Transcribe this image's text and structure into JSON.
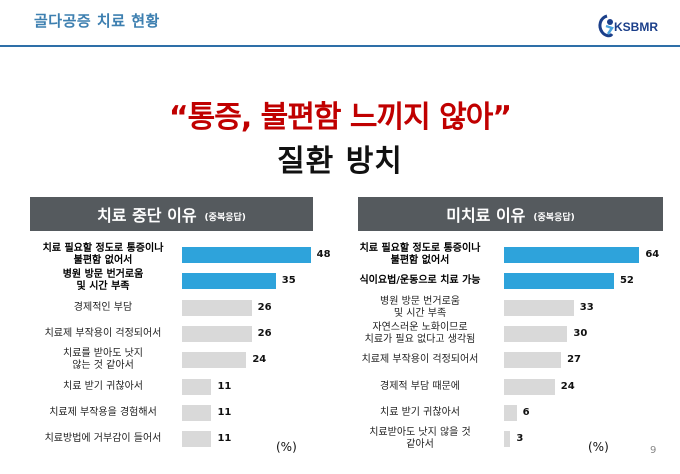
{
  "header": {
    "title": "골다공증 치료 현황",
    "logo_text": "KSBMR"
  },
  "headline": {
    "line1": "“통증, 불편함 느끼지 않아”",
    "line2": "질환 방치"
  },
  "colors": {
    "highlight_bar": "#2ea3db",
    "normal_bar": "#d9d9d9",
    "header_bg": "#555a5e",
    "headline_red": "#c00000"
  },
  "left_panel": {
    "title": "치료 중단 이유",
    "note": "(중복응답)",
    "unit": "(%)",
    "chart_data": {
      "type": "bar",
      "orientation": "horizontal",
      "categories": [
        "치료 필요할 정도로 통증이나 불편함 없어서",
        "병원 방문 번거로움 및 시간 부족",
        "경제적인 부담",
        "치료제 부작용이 걱정되어서",
        "치료를 받아도 낫지 않는 것 같아서",
        "치료 받기 귀찮아서",
        "치료제 부작용을 경험해서",
        "치료방법에 거부감이 들어서"
      ],
      "values": [
        48,
        35,
        26,
        26,
        24,
        11,
        11,
        11
      ],
      "highlighted": [
        true,
        true,
        false,
        false,
        false,
        false,
        false,
        false
      ],
      "xlim": [
        0,
        50
      ]
    }
  },
  "right_panel": {
    "title": "미치료 이유",
    "note": "(중복응답)",
    "unit": "(%)",
    "chart_data": {
      "type": "bar",
      "orientation": "horizontal",
      "categories": [
        "치료 필요할 정도로 통증이나 불편함 없어서",
        "식이요법/운동으로 치료 가능",
        "병원 방문 번거로움 및 시간 부족",
        "자연스러운 노화이므로 치료가 필요 없다고 생각됨",
        "치료제 부작용이 걱정되어서",
        "경제적 부담 때문에",
        "치료 받기 귀찮아서",
        "치료받아도 낫지 않을 것 같아서"
      ],
      "values": [
        64,
        52,
        33,
        30,
        27,
        24,
        6,
        3
      ],
      "highlighted": [
        true,
        true,
        false,
        false,
        false,
        false,
        false,
        false
      ],
      "xlim": [
        0,
        70
      ]
    }
  },
  "left_labels": [
    [
      "치료 필요할 정도로 통증이나",
      "불편함 없어서"
    ],
    [
      "병원 방문 번거로움",
      "및 시간 부족"
    ],
    [
      "경제적인 부담"
    ],
    [
      "치료제 부작용이 걱정되어서"
    ],
    [
      "치료를 받아도 낫지",
      "않는 것 같아서"
    ],
    [
      "치료 받기 귀찮아서"
    ],
    [
      "치료제 부작용을 경험해서"
    ],
    [
      "치료방법에 거부감이 들어서"
    ]
  ],
  "right_labels": [
    [
      "치료 필요할 정도로 통증이나",
      "불편함 없어서"
    ],
    [
      "식이요법/운동으로 치료 가능"
    ],
    [
      "병원 방문 번거로움",
      "및 시간 부족"
    ],
    [
      "자연스러운 노화이므로",
      "치료가 필요 없다고 생각됨"
    ],
    [
      "치료제 부작용이 걱정되어서"
    ],
    [
      "경제적 부담 때문에"
    ],
    [
      "치료 받기 귀찮아서"
    ],
    [
      "치료받아도 낫지 않을 것",
      "같아서"
    ]
  ],
  "page_number": "9"
}
